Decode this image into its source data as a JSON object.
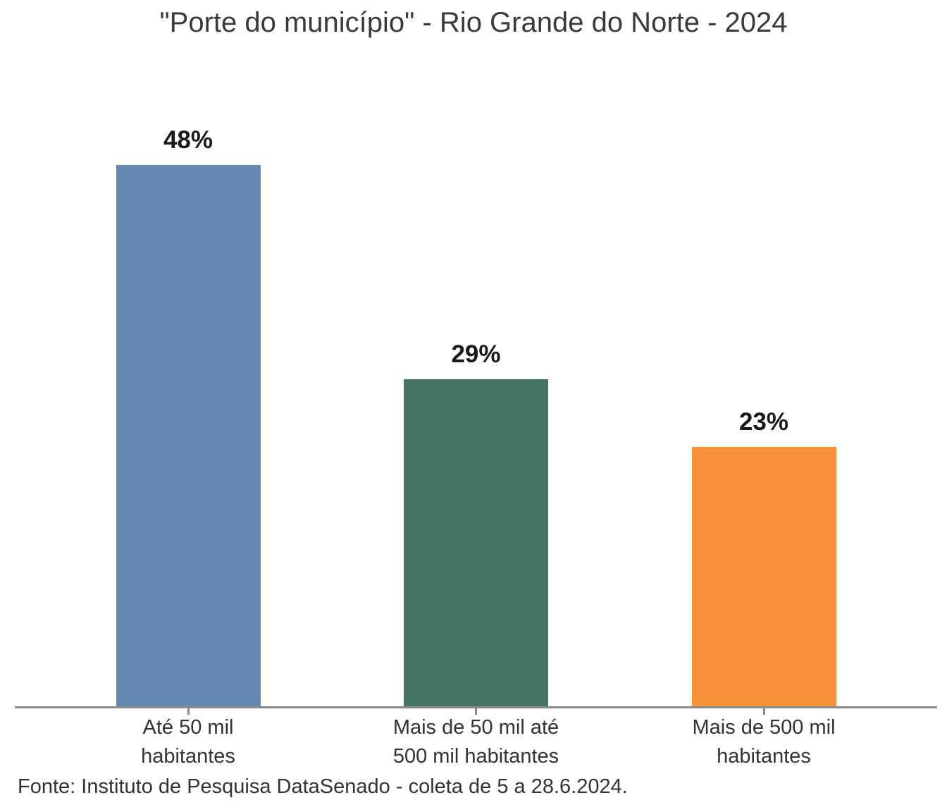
{
  "title": "\"Porte do município\" - Rio Grande do Norte - 2024",
  "source": "Fonte: Instituto de Pesquisa DataSenado - coleta de 5 a 28.6.2024.",
  "colors": {
    "bar_blue": "#6789b1",
    "bar_green": "#447663",
    "bar_orange": "#f8933c",
    "axis_gray": "#8a8a8a",
    "title_text": "#3a3a3a",
    "label_text": "#333333",
    "value_text": "#1a1a1a",
    "background": "#ffffff"
  },
  "chart_data": {
    "type": "bar",
    "title": "\"Porte do município\" - Rio Grande do Norte - 2024",
    "categories": [
      "Até 50 mil\nhabitantes",
      "Mais de 50 mil até\n500 mil habitantes",
      "Mais de 500 mil\nhabitantes"
    ],
    "values": [
      48,
      29,
      23
    ],
    "value_labels": [
      "48%",
      "29%",
      "23%"
    ],
    "bar_colors": [
      "#6789b1",
      "#447663",
      "#f8933c"
    ],
    "xlabel": "",
    "ylabel": "",
    "ylim": [
      0,
      52
    ],
    "grid": false,
    "legend": "none",
    "y_axis_visible": false,
    "annotation": "Fonte: Instituto de Pesquisa DataSenado - coleta de 5 a 28.6.2024."
  }
}
